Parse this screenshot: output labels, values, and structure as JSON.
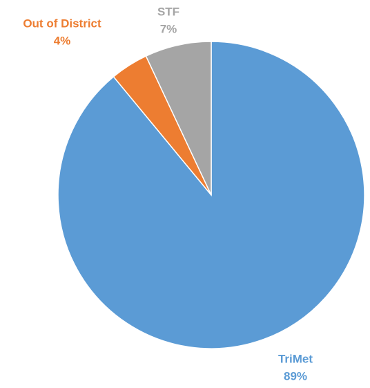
{
  "chart_data": {
    "type": "pie",
    "categories": [
      "TriMet",
      "Out of District",
      "STF"
    ],
    "values": [
      89,
      4,
      7
    ],
    "value_labels": [
      "89%",
      "4%",
      "7%"
    ],
    "colors": [
      "#5b9bd5",
      "#ed7d31",
      "#a5a5a5"
    ]
  }
}
